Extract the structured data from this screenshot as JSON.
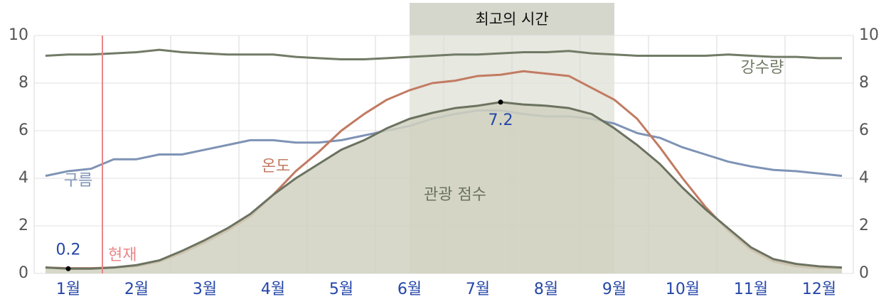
{
  "chart_data": {
    "type": "line",
    "categories": [
      null,
      "1월",
      null,
      null,
      "2월",
      null,
      null,
      "3월",
      null,
      null,
      "4월",
      null,
      null,
      "5월",
      null,
      null,
      "6월",
      null,
      null,
      "7월",
      null,
      null,
      "8월",
      null,
      null,
      "9월",
      null,
      null,
      "10월",
      null,
      null,
      "11월",
      null,
      null,
      "12월",
      null
    ],
    "ylim": [
      0,
      10
    ],
    "yticks": [
      0,
      2,
      4,
      6,
      8,
      10
    ],
    "grid": true,
    "highlight": {
      "label": "최고의 시간",
      "from": 16,
      "to": 25,
      "color": "#e7e8df",
      "header_color": "#d6d7cc"
    },
    "now": {
      "label": "현재",
      "index": 3,
      "color": "#e8878a"
    },
    "series": [
      {
        "name": "강수량",
        "color": "#717b66",
        "values": [
          9.15,
          9.2,
          9.2,
          9.25,
          9.3,
          9.4,
          9.3,
          9.25,
          9.2,
          9.2,
          9.2,
          9.1,
          9.05,
          9.0,
          9.0,
          9.05,
          9.1,
          9.15,
          9.2,
          9.2,
          9.25,
          9.3,
          9.3,
          9.35,
          9.25,
          9.2,
          9.15,
          9.15,
          9.15,
          9.15,
          9.2,
          9.15,
          9.1,
          9.1,
          9.05,
          9.05
        ]
      },
      {
        "name": "구름",
        "color": "#7e93b5",
        "values": [
          4.1,
          4.3,
          4.4,
          4.8,
          4.8,
          5.0,
          5.0,
          5.2,
          5.4,
          5.6,
          5.6,
          5.5,
          5.5,
          5.6,
          5.8,
          6.0,
          6.2,
          6.5,
          6.7,
          6.85,
          6.85,
          6.7,
          6.6,
          6.6,
          6.5,
          6.3,
          5.9,
          5.7,
          5.3,
          5.0,
          4.7,
          4.5,
          4.35,
          4.3,
          4.2,
          4.1
        ]
      },
      {
        "name": "온도",
        "color": "#c27b62",
        "values": [
          0.25,
          0.22,
          0.22,
          0.25,
          0.3,
          0.5,
          0.85,
          1.3,
          1.8,
          2.4,
          3.3,
          4.3,
          5.1,
          6.0,
          6.7,
          7.3,
          7.7,
          8.0,
          8.1,
          8.3,
          8.35,
          8.5,
          8.4,
          8.3,
          7.8,
          7.3,
          6.5,
          5.3,
          4.0,
          2.8,
          1.8,
          1.0,
          0.5,
          0.3,
          0.22,
          0.22
        ]
      },
      {
        "name": "관광 점수",
        "color": "#6b7260",
        "fill": "#d0d1c0",
        "label_extremes": true,
        "extreme_label_color": "#2446a8",
        "values": [
          0.25,
          0.2,
          0.2,
          0.25,
          0.35,
          0.55,
          0.95,
          1.4,
          1.9,
          2.5,
          3.3,
          4.0,
          4.6,
          5.2,
          5.6,
          6.1,
          6.5,
          6.75,
          6.95,
          7.05,
          7.2,
          7.1,
          7.05,
          6.95,
          6.7,
          6.1,
          5.4,
          4.6,
          3.6,
          2.7,
          1.9,
          1.1,
          0.6,
          0.4,
          0.3,
          0.25
        ]
      }
    ]
  }
}
